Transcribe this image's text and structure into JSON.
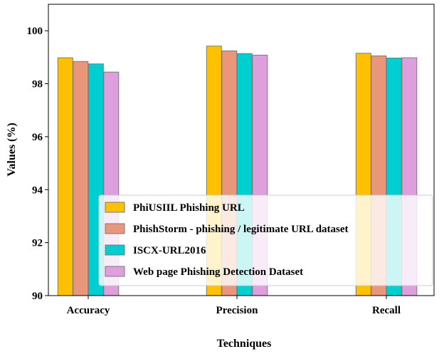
{
  "chart_data": {
    "type": "bar",
    "title": "",
    "xlabel": "Techniques",
    "ylabel": "Values (%)",
    "ylim": [
      90,
      101
    ],
    "yticks": [
      90,
      92,
      94,
      96,
      98,
      100
    ],
    "categories": [
      "Accuracy",
      "Precision",
      "Recall"
    ],
    "series": [
      {
        "name": "PhiUSIIL Phishing URL",
        "color": "#ffc000",
        "values": [
          98.98,
          99.42,
          99.15
        ]
      },
      {
        "name": "PhishStorm - phishing / legitimate URL dataset",
        "color": "#e9967a",
        "values": [
          98.84,
          99.24,
          99.05
        ]
      },
      {
        "name": "ISCX-URL2016",
        "color": "#00ced1",
        "values": [
          98.75,
          99.14,
          98.97
        ]
      },
      {
        "name": "Web page Phishing Detection Dataset",
        "color": "#dda0dd",
        "values": [
          98.44,
          99.08,
          98.98
        ]
      }
    ],
    "legend": {
      "position": "lower-right"
    },
    "grid": false
  }
}
